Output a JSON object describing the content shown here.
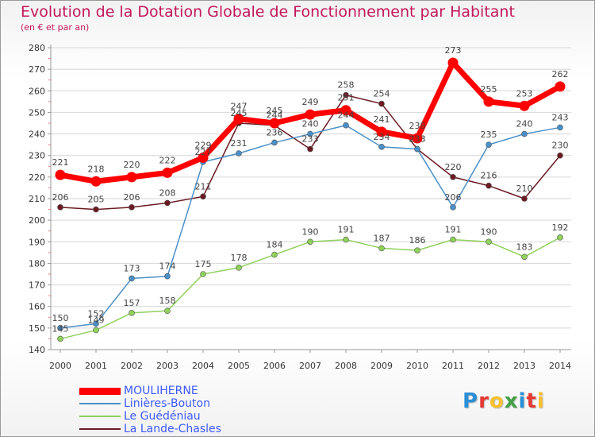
{
  "header": {
    "title": "Evolution de la Dotation Globale de Fonctionnement par Habitant",
    "subtitle": "(en € et par an)"
  },
  "logo": {
    "text": "Proxiti",
    "colors": [
      "#2a8fd6",
      "#e53935",
      "#fbc02d",
      "#43a047",
      "#2a8fd6",
      "#e53935",
      "#fbc02d"
    ]
  },
  "chart_data": {
    "type": "line",
    "title": "Evolution de la Dotation Globale de Fonctionnement par Habitant",
    "subtitle": "(en € et par an)",
    "xlabel": "",
    "ylabel": "",
    "ylim": [
      140,
      280
    ],
    "yticks": [
      140,
      150,
      160,
      170,
      180,
      190,
      200,
      210,
      220,
      230,
      240,
      250,
      260,
      270,
      280
    ],
    "grid": true,
    "legend_position": "bottom-left",
    "x": [
      "2000",
      "2001",
      "2002",
      "2003",
      "2004",
      "2005",
      "2006",
      "2007",
      "2008",
      "2009",
      "2010",
      "2011",
      "2012",
      "2013",
      "2014"
    ],
    "series": [
      {
        "name": "MOULIHERNE",
        "color": "#ff0000",
        "values": [
          221,
          218,
          220,
          222,
          229,
          247,
          245,
          249,
          251,
          241,
          238,
          273,
          255,
          253,
          262
        ]
      },
      {
        "name": "Linières-Bouton",
        "color": "#4a90c8",
        "values": [
          150,
          152,
          173,
          174,
          227,
          231,
          236,
          240,
          244,
          234,
          233,
          206,
          235,
          240,
          243
        ]
      },
      {
        "name": "Le Guédéniau",
        "color": "#8fd15a",
        "values": [
          145,
          149,
          157,
          158,
          175,
          178,
          184,
          190,
          191,
          187,
          186,
          191,
          190,
          183,
          192
        ]
      },
      {
        "name": "La Lande-Chasles",
        "color": "#6b1a22",
        "values": [
          206,
          205,
          206,
          208,
          211,
          245,
          244,
          233,
          258,
          254,
          233,
          220,
          216,
          210,
          230
        ]
      }
    ]
  }
}
